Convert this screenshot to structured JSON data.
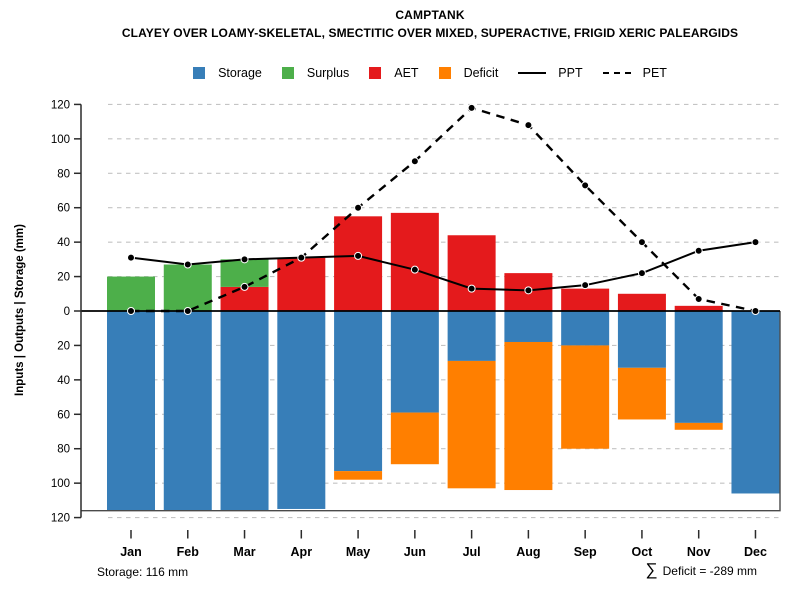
{
  "header": {
    "title": "CAMPTANK",
    "subtitle": "CLAYEY OVER LOAMY-SKELETAL, SMECTITIC OVER MIXED, SUPERACTIVE, FRIGID XERIC PALEARGIDS"
  },
  "legend": {
    "items": [
      {
        "label": "Storage",
        "swatch": "square",
        "color": "#377EB8"
      },
      {
        "label": "Surplus",
        "swatch": "square",
        "color": "#4DAF4A"
      },
      {
        "label": "AET",
        "swatch": "square",
        "color": "#E41A1C"
      },
      {
        "label": "Deficit",
        "swatch": "square",
        "color": "#FF7F00"
      },
      {
        "label": "PPT",
        "swatch": "solid-line",
        "color": "#000000"
      },
      {
        "label": "PET",
        "swatch": "dashed-line",
        "color": "#000000"
      }
    ]
  },
  "y_axis": {
    "title": "Inputs | Outputs | Storage  (mm)",
    "tick_labels": [
      "120",
      "100",
      "80",
      "60",
      "40",
      "20",
      "0",
      "20",
      "40",
      "60",
      "80",
      "100",
      "120"
    ]
  },
  "chart_data": {
    "type": "bar",
    "subtype": "monthly-water-balance (stacked bars above/below zero + two line series)",
    "categories": [
      "Jan",
      "Feb",
      "Mar",
      "Apr",
      "May",
      "Jun",
      "Jul",
      "Aug",
      "Sep",
      "Oct",
      "Nov",
      "Dec"
    ],
    "series": [
      {
        "name": "Storage",
        "kind": "bar",
        "direction": "down",
        "color": "#377EB8",
        "values": [
          116,
          116,
          116,
          115,
          93,
          59,
          29,
          18,
          20,
          33,
          65,
          106
        ]
      },
      {
        "name": "Deficit",
        "kind": "bar",
        "direction": "down",
        "stacked_on": "Storage",
        "color": "#FF7F00",
        "values": [
          0,
          0,
          0,
          0,
          5,
          30,
          74,
          86,
          60,
          30,
          4,
          0
        ]
      },
      {
        "name": "AET",
        "kind": "bar",
        "direction": "up",
        "color": "#E41A1C",
        "values": [
          0,
          0,
          14,
          31,
          55,
          57,
          44,
          22,
          13,
          10,
          3,
          0
        ]
      },
      {
        "name": "Surplus",
        "kind": "bar",
        "direction": "up",
        "stacked_on": "AET",
        "color": "#4DAF4A",
        "values": [
          20,
          27,
          16,
          0,
          0,
          0,
          0,
          0,
          0,
          0,
          0,
          0
        ]
      },
      {
        "name": "PPT",
        "kind": "line",
        "style": "solid",
        "color": "#000000",
        "values": [
          31,
          27,
          30,
          31,
          32,
          24,
          13,
          12,
          15,
          22,
          35,
          40
        ]
      },
      {
        "name": "PET",
        "kind": "line",
        "style": "dashed",
        "color": "#000000",
        "values": [
          0,
          0,
          14,
          31,
          60,
          87,
          118,
          108,
          73,
          40,
          7,
          0
        ]
      }
    ],
    "ylim": [
      -120,
      120
    ],
    "grid": true,
    "gridline_step": 20,
    "storage_capacity_line_mm": 116,
    "legend_position": "top",
    "title": "CAMPTANK",
    "ylabel": "Inputs | Outputs | Storage  (mm)"
  },
  "footer": {
    "storage_note": "Storage: 116 mm",
    "sum_symbol": "∑",
    "deficit_note": "Deficit = -289 mm"
  }
}
